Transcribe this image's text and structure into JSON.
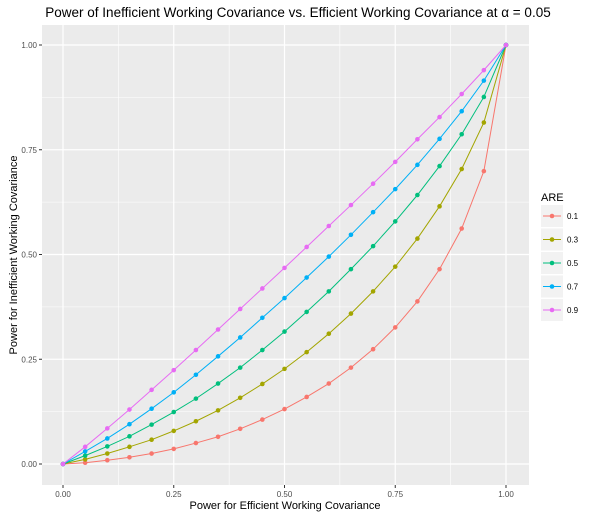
{
  "chart_data": {
    "type": "line",
    "title": "Power of Inefficient Working Covariance vs. Efficient Working Covariance at α = 0.05",
    "xlabel": "Power for Efficient Working Covariance",
    "ylabel": "Power for Inefficient Working Covariance",
    "xlim": [
      0,
      1
    ],
    "ylim": [
      0,
      1
    ],
    "x_ticks": [
      "0.00",
      "0.25",
      "0.50",
      "0.75",
      "1.00"
    ],
    "y_ticks": [
      "0.00",
      "0.25",
      "0.50",
      "0.75",
      "1.00"
    ],
    "grid": true,
    "legend": {
      "title": "ARE",
      "position": "right"
    },
    "x": [
      0.0,
      0.05,
      0.1,
      0.15,
      0.2,
      0.25,
      0.3,
      0.35,
      0.4,
      0.45,
      0.5,
      0.55,
      0.6,
      0.65,
      0.7,
      0.75,
      0.8,
      0.85,
      0.9,
      0.95,
      1.0
    ],
    "series": [
      {
        "name": "0.1",
        "color": "#F8766D",
        "values": [
          0.0,
          0.003,
          0.009,
          0.016,
          0.025,
          0.036,
          0.05,
          0.065,
          0.084,
          0.106,
          0.131,
          0.16,
          0.192,
          0.23,
          0.274,
          0.326,
          0.388,
          0.465,
          0.562,
          0.699,
          1.0
        ]
      },
      {
        "name": "0.3",
        "color": "#A3A500",
        "values": [
          0.0,
          0.011,
          0.025,
          0.041,
          0.058,
          0.079,
          0.102,
          0.128,
          0.158,
          0.191,
          0.227,
          0.267,
          0.311,
          0.359,
          0.412,
          0.471,
          0.538,
          0.615,
          0.704,
          0.815,
          1.0
        ]
      },
      {
        "name": "0.5",
        "color": "#00BF7D",
        "values": [
          0.0,
          0.02,
          0.042,
          0.066,
          0.094,
          0.124,
          0.156,
          0.192,
          0.23,
          0.272,
          0.316,
          0.363,
          0.412,
          0.465,
          0.52,
          0.579,
          0.642,
          0.711,
          0.787,
          0.876,
          1.0
        ]
      },
      {
        "name": "0.7",
        "color": "#00B0F6",
        "values": [
          0.0,
          0.03,
          0.061,
          0.095,
          0.132,
          0.171,
          0.213,
          0.257,
          0.302,
          0.349,
          0.396,
          0.445,
          0.495,
          0.547,
          0.601,
          0.656,
          0.714,
          0.776,
          0.842,
          0.915,
          1.0
        ]
      },
      {
        "name": "0.9",
        "color": "#E76BF3",
        "values": [
          0.0,
          0.041,
          0.085,
          0.13,
          0.177,
          0.224,
          0.272,
          0.321,
          0.37,
          0.419,
          0.468,
          0.518,
          0.568,
          0.618,
          0.669,
          0.721,
          0.775,
          0.828,
          0.883,
          0.94,
          1.0
        ]
      }
    ]
  }
}
